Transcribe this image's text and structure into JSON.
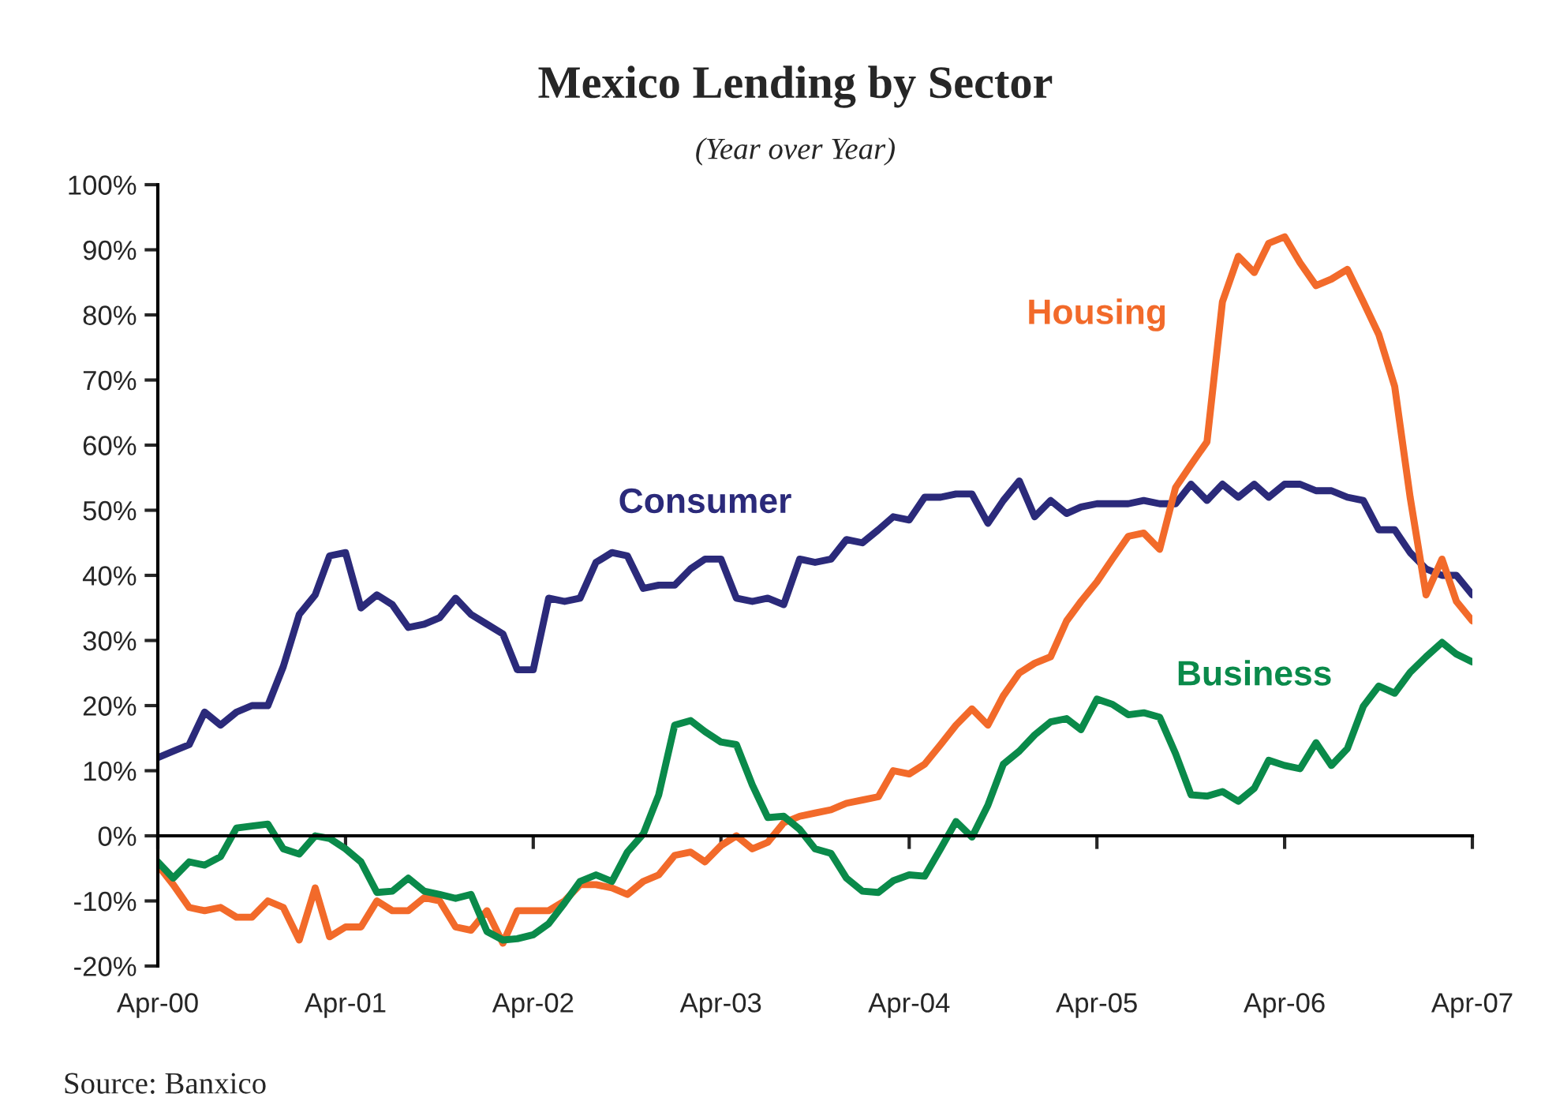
{
  "chart_data": {
    "type": "line",
    "title": "Mexico Lending by Sector",
    "subtitle": "(Year over Year)",
    "annotations": [
      "Source: Banxico"
    ],
    "x": [
      "2000-04",
      "2000-05",
      "2000-06",
      "2000-07",
      "2000-08",
      "2000-09",
      "2000-10",
      "2000-11",
      "2000-12",
      "2001-01",
      "2001-02",
      "2001-03",
      "2001-04",
      "2001-05",
      "2001-06",
      "2001-07",
      "2001-08",
      "2001-09",
      "2001-10",
      "2001-11",
      "2001-12",
      "2002-01",
      "2002-02",
      "2002-03",
      "2002-04",
      "2002-05",
      "2002-06",
      "2002-07",
      "2002-08",
      "2002-09",
      "2002-10",
      "2002-11",
      "2002-12",
      "2003-01",
      "2003-02",
      "2003-03",
      "2003-04",
      "2003-05",
      "2003-06",
      "2003-07",
      "2003-08",
      "2003-09",
      "2003-10",
      "2003-11",
      "2003-12",
      "2004-01",
      "2004-02",
      "2004-03",
      "2004-04",
      "2004-05",
      "2004-06",
      "2004-07",
      "2004-08",
      "2004-09",
      "2004-10",
      "2004-11",
      "2004-12",
      "2005-01",
      "2005-02",
      "2005-03",
      "2005-04",
      "2005-05",
      "2005-06",
      "2005-07",
      "2005-08",
      "2005-09",
      "2005-10",
      "2005-11",
      "2005-12",
      "2006-01",
      "2006-02",
      "2006-03",
      "2006-04",
      "2006-05",
      "2006-06",
      "2006-07",
      "2006-08",
      "2006-09",
      "2006-10",
      "2006-11",
      "2006-12",
      "2007-01",
      "2007-02",
      "2007-03",
      "2007-04"
    ],
    "series": [
      {
        "name": "Consumer",
        "color": "#2b2a7a",
        "values": [
          12,
          13,
          14,
          19,
          17,
          19,
          20,
          20,
          26,
          34,
          37,
          43,
          43.5,
          35,
          37,
          35.5,
          32,
          32.5,
          33.5,
          36.5,
          34,
          32.5,
          31,
          25.5,
          25.5,
          36.5,
          36,
          36.5,
          42,
          43.5,
          43,
          38,
          38.5,
          38.5,
          41,
          42.5,
          42.5,
          36.5,
          36,
          36.5,
          35.5,
          42.5,
          42,
          42.5,
          45.5,
          45,
          47,
          49,
          48.5,
          52,
          52,
          52.5,
          52.5,
          48,
          51.5,
          54.5,
          49,
          51.5,
          49.5,
          50.5,
          51,
          51,
          51,
          51.5,
          51,
          51,
          54,
          51.5,
          54,
          52,
          54,
          52,
          54,
          54,
          53,
          53,
          52,
          51.5,
          47,
          47,
          43.5,
          41,
          40,
          40,
          37
        ]
      },
      {
        "name": "Housing",
        "color": "#f26a2a",
        "values": [
          -4.5,
          -7.5,
          -11,
          -11.5,
          -11,
          -12.5,
          -12.5,
          -10,
          -11,
          -16,
          -8,
          -15.5,
          -14,
          -14,
          -10,
          -11.5,
          -11.5,
          -9.5,
          -10,
          -14,
          -14.5,
          -11.5,
          -16.5,
          -11.5,
          -11.5,
          -11.5,
          -10,
          -7.5,
          -7.5,
          -8,
          -9,
          -7,
          -6,
          -3,
          -2.5,
          -4,
          -1.5,
          0,
          -2,
          -1,
          2,
          3,
          3.5,
          4,
          5,
          5.5,
          6,
          10,
          9.5,
          11,
          14,
          17,
          19.5,
          17,
          21.5,
          25,
          26.5,
          27.5,
          33,
          36,
          39,
          42.5,
          46,
          46.5,
          44,
          53.5,
          57,
          60.5,
          82,
          89,
          86.5,
          91,
          92,
          88,
          84.5,
          85.5,
          87,
          82,
          77,
          69,
          52,
          37,
          42.5,
          36,
          33
        ]
      },
      {
        "name": "Business",
        "color": "#0a8a4a",
        "values": [
          -4,
          -6.5,
          -4,
          -4.5,
          -3.2,
          1.2,
          1.5,
          1.8,
          -2,
          -2.8,
          0,
          -0.4,
          -2,
          -4,
          -8.7,
          -8.5,
          -6.5,
          -8.5,
          -9,
          -9.6,
          -9,
          -14.7,
          -16,
          -15.8,
          -15.2,
          -13.5,
          -10.3,
          -7,
          -6,
          -7,
          -2.5,
          0.3,
          6.3,
          17,
          17.7,
          16,
          14.4,
          14,
          7.8,
          2.8,
          3,
          1,
          -2,
          -2.7,
          -6.5,
          -8.5,
          -8.7,
          -6.9,
          -6,
          -6.2,
          -2,
          2.2,
          -0.2,
          4.7,
          11,
          13,
          15.5,
          17.5,
          18,
          16.3,
          21,
          20.2,
          18.6,
          18.9,
          18.2,
          12.6,
          6.3,
          6.1,
          6.8,
          5.3,
          7.3,
          11.6,
          10.8,
          10.3,
          14.3,
          10.8,
          13.4,
          19.9,
          23,
          21.9,
          25.1,
          27.5,
          29.7,
          27.9,
          26.7
        ]
      }
    ],
    "xlim": [
      "2000-04",
      "2007-04"
    ],
    "xticks": [
      {
        "value": "2000-04",
        "label": "Apr-00"
      },
      {
        "value": "2001-04",
        "label": "Apr-01"
      },
      {
        "value": "2002-04",
        "label": "Apr-02"
      },
      {
        "value": "2003-04",
        "label": "Apr-03"
      },
      {
        "value": "2004-04",
        "label": "Apr-04"
      },
      {
        "value": "2005-04",
        "label": "Apr-05"
      },
      {
        "value": "2006-04",
        "label": "Apr-06"
      },
      {
        "value": "2007-04",
        "label": "Apr-07"
      }
    ],
    "ylim": [
      -20,
      100
    ],
    "yticks": [
      {
        "value": -20,
        "label": "-20%"
      },
      {
        "value": -10,
        "label": "-10%"
      },
      {
        "value": 0,
        "label": "0%"
      },
      {
        "value": 10,
        "label": "10%"
      },
      {
        "value": 20,
        "label": "20%"
      },
      {
        "value": 30,
        "label": "30%"
      },
      {
        "value": 40,
        "label": "40%"
      },
      {
        "value": 50,
        "label": "50%"
      },
      {
        "value": 60,
        "label": "60%"
      },
      {
        "value": 70,
        "label": "70%"
      },
      {
        "value": 80,
        "label": "80%"
      },
      {
        "value": 90,
        "label": "90%"
      },
      {
        "value": 100,
        "label": "100%"
      }
    ],
    "legend": false,
    "marker": "none",
    "line_style": "solid"
  }
}
